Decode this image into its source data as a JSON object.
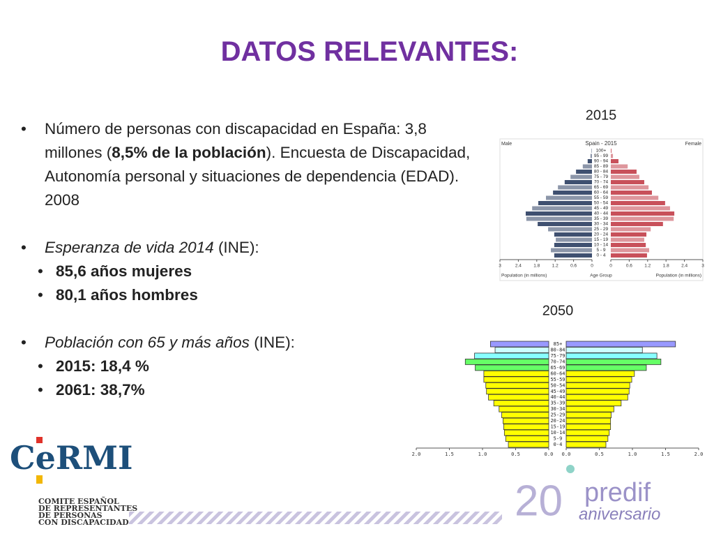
{
  "slide": {
    "title": "DATOS RELEVANTES:",
    "bullets": [
      {
        "runs": [
          "Número de personas con discapacidad en España:  3,8 millones (",
          "8,5% de la población",
          "). Encuesta de Discapacidad, Autonomía personal y situaciones de dependencia (EDAD). 2008"
        ]
      },
      {
        "runs": [
          "Esperanza de vida 2014",
          " (INE):"
        ],
        "sub": [
          "85,6 años mujeres",
          "80,1 años hombres"
        ]
      },
      {
        "runs": [
          "Población con 65 y más años",
          " (INE):"
        ],
        "sub": [
          "2015: 18,4 %",
          "2061: 38,7%"
        ]
      }
    ],
    "logo_left": {
      "name": "CeRMI",
      "lines": [
        "COMITE ESPAÑOL",
        "DE REPRESENTANTES",
        "DE PERSONAS",
        "CON DISCAPACIDAD"
      ]
    },
    "logo_right": {
      "number": "20",
      "name": "predif",
      "tagline": "aniversario"
    }
  },
  "chart_data": [
    {
      "type": "pyramid",
      "caption": "2015",
      "title": "Spain - 2015",
      "left_label": "Male",
      "right_label": "Female",
      "xlabel_left": "Population (in millions)",
      "xlabel_center": "Age Group",
      "xlabel_right": "Population (in millions)",
      "categories": [
        "0 - 4",
        "5 - 9",
        "10 - 14",
        "15 - 19",
        "20 - 24",
        "25 - 29",
        "30 - 34",
        "35 - 39",
        "40 - 44",
        "45 - 49",
        "50 - 54",
        "55 - 59",
        "60 - 64",
        "65 - 69",
        "70 - 74",
        "75 - 79",
        "80 - 84",
        "85 - 89",
        "90 - 94",
        "95 - 99",
        "100+"
      ],
      "series": [
        {
          "name": "Male",
          "color": "#3f5070",
          "values": [
            1.23,
            1.34,
            1.23,
            1.18,
            1.23,
            1.43,
            1.77,
            2.14,
            2.16,
            1.95,
            1.75,
            1.5,
            1.27,
            1.11,
            0.89,
            0.7,
            0.52,
            0.3,
            0.14,
            0.05,
            0.01
          ]
        },
        {
          "name": "Female",
          "color": "#c8505a",
          "values": [
            1.18,
            1.25,
            1.14,
            1.09,
            1.16,
            1.3,
            1.7,
            2.05,
            2.07,
            1.93,
            1.77,
            1.55,
            1.34,
            1.23,
            1.09,
            0.93,
            0.84,
            0.55,
            0.25,
            0.07,
            0.02
          ]
        }
      ],
      "xlim": [
        0,
        3
      ],
      "xticks": [
        3,
        2.4,
        1.8,
        1.2,
        0.6,
        0
      ]
    },
    {
      "type": "pyramid",
      "caption": "2050",
      "categories": [
        "0-4",
        "5-9",
        "10-14",
        "15-19",
        "20-24",
        "25-29",
        "30-34",
        "35-39",
        "40-44",
        "45-49",
        "50-54",
        "55-59",
        "60-64",
        "65-69",
        "70-74",
        "75-79",
        "80-84",
        "85+"
      ],
      "colors": [
        "#ffff00",
        "#ffff00",
        "#ffff00",
        "#ffff00",
        "#ffff00",
        "#ffff00",
        "#ffff00",
        "#ffff00",
        "#ffff00",
        "#ffff00",
        "#ffff00",
        "#ffff00",
        "#ffff00",
        "#66ff66",
        "#66ff66",
        "#88ffff",
        "#ccffff",
        "#9999ff"
      ],
      "series": [
        {
          "values": [
            0.61,
            0.65,
            0.67,
            0.68,
            0.69,
            0.71,
            0.75,
            0.83,
            0.91,
            0.94,
            0.95,
            0.98,
            0.98,
            1.11,
            1.26,
            1.12,
            0.81,
            0.88
          ]
        },
        {
          "values": [
            0.6,
            0.63,
            0.65,
            0.67,
            0.67,
            0.68,
            0.72,
            0.83,
            0.93,
            0.95,
            0.96,
            0.99,
            1.03,
            1.21,
            1.43,
            1.37,
            1.15,
            1.65
          ]
        }
      ],
      "xlim": [
        0,
        2
      ],
      "xticks": [
        {
          "value": 2,
          "label": "2.0"
        },
        {
          "value": 1.5,
          "label": "1.5"
        },
        {
          "value": 1,
          "label": "1.0"
        },
        {
          "value": 0.5,
          "label": "0.5"
        },
        {
          "value": 0,
          "label": "0.0"
        }
      ]
    }
  ]
}
